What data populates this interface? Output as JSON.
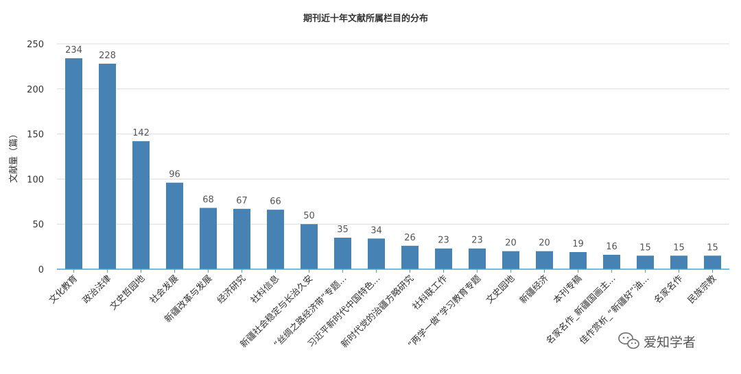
{
  "chart_data": {
    "type": "bar",
    "title": "期刊近十年文献所属栏目的分布",
    "ylabel": "文献量（篇）",
    "xlabel": "",
    "ylim": [
      0,
      250
    ],
    "yticks": [
      0,
      50,
      100,
      150,
      200,
      250
    ],
    "grid": true,
    "bar_color": "#4682b4",
    "axis_color": "#3aa8d8",
    "categories": [
      "文化教育",
      "政治法律",
      "文史哲园地",
      "社会发展",
      "新疆改革与发展",
      "经济研究",
      "社科信息",
      "新疆社会稳定与长治久安",
      "“丝绸之路经济带”专题...",
      "习近平新时代中国特色...",
      "新时代党的治疆方略研究",
      "社科联工作",
      "“两学一做”学习教育专题",
      "文史园地",
      "新疆经济",
      "本刊专稿",
      "名家名作_新疆国画主...",
      "佳作赏析_“新疆好”油...",
      "名家名作",
      "民族宗教"
    ],
    "values": [
      234,
      228,
      142,
      96,
      68,
      67,
      66,
      50,
      35,
      34,
      26,
      23,
      23,
      20,
      20,
      19,
      16,
      15,
      15,
      15
    ],
    "data_labels": [
      "234",
      "228",
      "142",
      "96",
      "68",
      "67",
      "66",
      "50",
      "35",
      "34",
      "26",
      "23",
      "23",
      "20",
      "20",
      "19",
      "16",
      "15",
      "15",
      "15"
    ]
  },
  "watermark": {
    "text": "爱知学者",
    "icon": "wechat-icon"
  }
}
